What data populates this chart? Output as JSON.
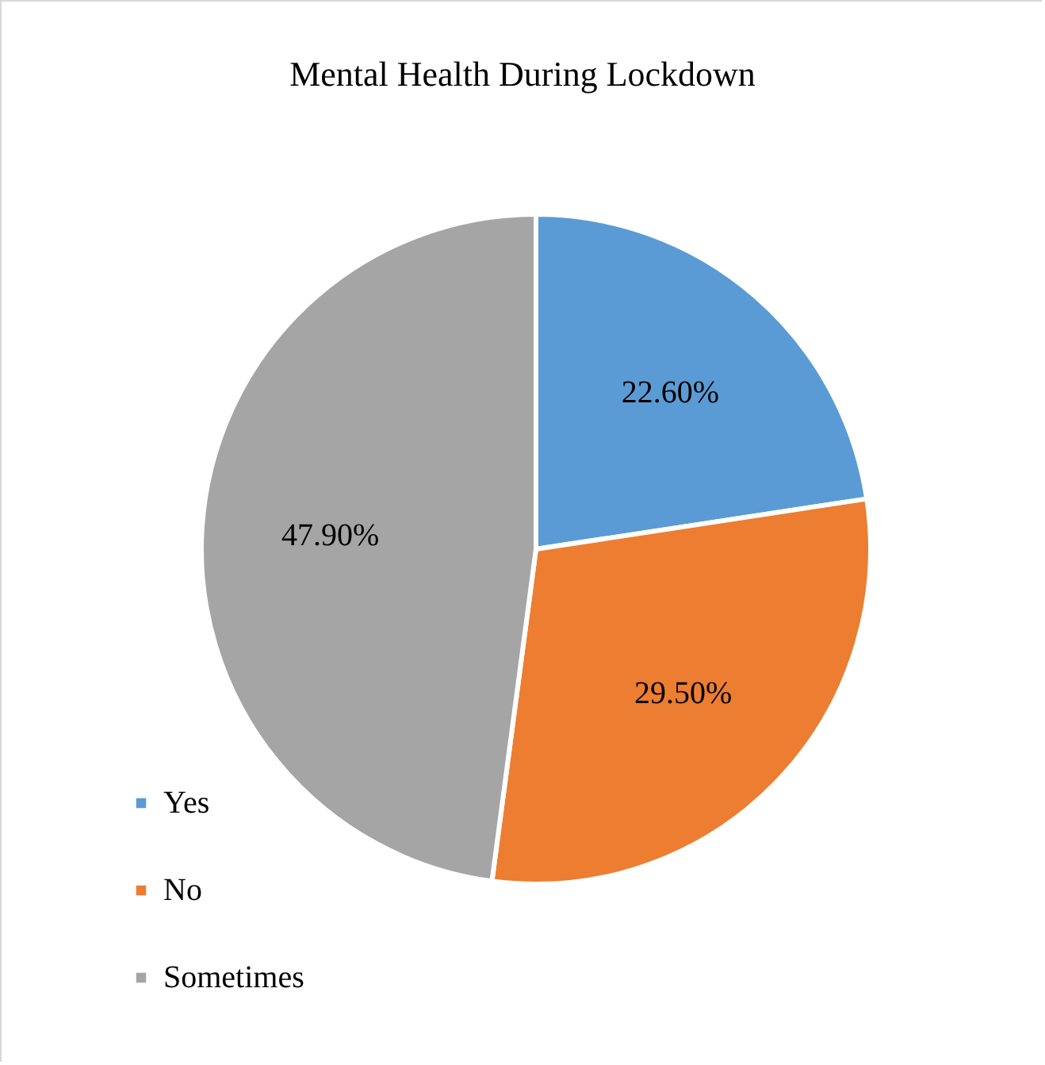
{
  "chart_data": {
    "type": "pie",
    "title": "Mental Health During Lockdown",
    "categories": [
      "Yes",
      "No",
      "Sometimes"
    ],
    "values": [
      22.6,
      29.5,
      47.9
    ],
    "value_labels": [
      "22.60%",
      "29.50%",
      "47.90%"
    ],
    "colors": [
      "#5b9bd5",
      "#ed7d31",
      "#a5a5a5"
    ],
    "legend": "bottom left"
  }
}
